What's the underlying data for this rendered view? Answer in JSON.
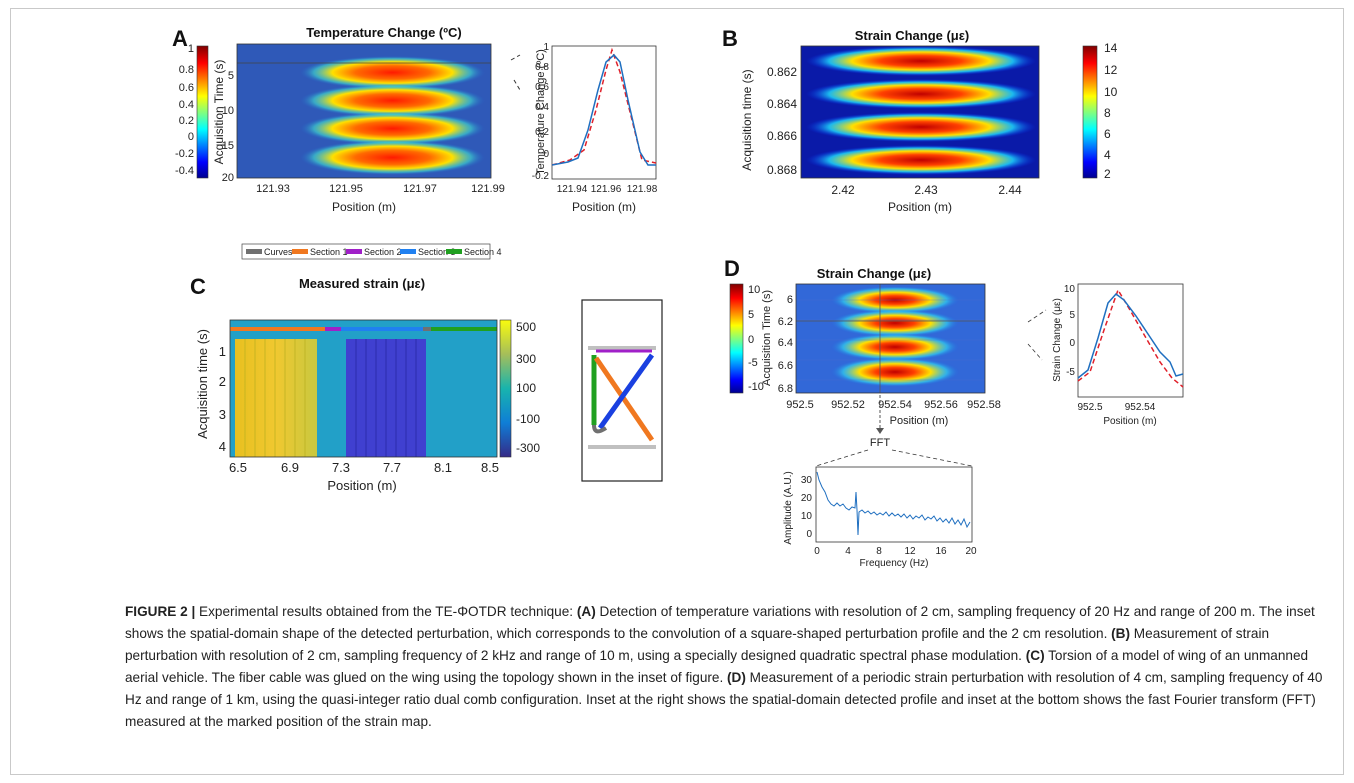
{
  "panels": {
    "A": {
      "letter": "A",
      "title": "Temperature Change (ºC)",
      "xlabel": "Position (m)",
      "ylabel": "Acquisition Time (s)",
      "xticks": [
        "121.93",
        "121.95",
        "121.97",
        "121.99"
      ],
      "yticks": [
        "5",
        "10",
        "15",
        "20"
      ],
      "cbar_ticks": [
        "1",
        "0.8",
        "0.6",
        "0.4",
        "0.2",
        "0",
        "-0.2",
        "-0.4"
      ],
      "inset": {
        "xlabel": "Position (m)",
        "ylabel": "Temperature Change (ºC)",
        "xticks": [
          "121.94",
          "121.96",
          "121.98"
        ],
        "yticks": [
          "1",
          "0.8",
          "0.6",
          "0.4",
          "0.2",
          "0",
          "-0.2"
        ]
      }
    },
    "B": {
      "letter": "B",
      "title": "Strain Change (με)",
      "xlabel": "Position (m)",
      "ylabel": "Acquisition time (s)",
      "xticks": [
        "2.42",
        "2.43",
        "2.44"
      ],
      "yticks": [
        "0.862",
        "0.864",
        "0.866",
        "0.868"
      ],
      "cbar_ticks": [
        "14",
        "12",
        "10",
        "8",
        "6",
        "4",
        "2"
      ]
    },
    "C": {
      "letter": "C",
      "title": "Measured strain (με)",
      "xlabel": "Position (m)",
      "ylabel": "Acquisition time (s)",
      "xticks": [
        "6.5",
        "6.9",
        "7.3",
        "7.7",
        "8.1",
        "8.5"
      ],
      "yticks": [
        "1",
        "2",
        "3",
        "4"
      ],
      "cbar_ticks": [
        "500",
        "300",
        "100",
        "-100",
        "-300"
      ],
      "legend": [
        "Curves",
        "Section 1",
        "Section 2",
        "Section 3",
        "Section 4"
      ]
    },
    "D": {
      "letter": "D",
      "title": "Strain Change (με)",
      "xlabel": "Position (m)",
      "ylabel": "Acquisition Time (s)",
      "xticks": [
        "952.5",
        "952.52",
        "952.54",
        "952.56",
        "952.58"
      ],
      "yticks": [
        "6",
        "6.2",
        "6.4",
        "6.6",
        "6.8"
      ],
      "cbar_ticks": [
        "10",
        "5",
        "0",
        "-5",
        "-10"
      ],
      "inset": {
        "xlabel": "Position (m)",
        "ylabel": "Strain Change (με)",
        "xticks": [
          "952.5",
          "952.54"
        ],
        "yticks": [
          "10",
          "5",
          "0",
          "-5"
        ]
      },
      "fft_label": "FFT",
      "fft": {
        "xlabel": "Frequency (Hz)",
        "ylabel": "Amplitude (A.U.)",
        "xticks": [
          "0",
          "4",
          "8",
          "12",
          "16",
          "20"
        ],
        "yticks": [
          "30",
          "20",
          "10",
          "0"
        ]
      }
    }
  },
  "colors": {
    "legend": [
      "#707070",
      "#f07820",
      "#a020c8",
      "#2080f0",
      "#20a020"
    ],
    "measured": "#1f6fc0",
    "model": "#e0202a"
  },
  "caption": {
    "figure_label": "FIGURE 2 |",
    "intro": " Experimental results obtained from the TE-ΦOTDR technique: ",
    "A_tag": "(A)",
    "A_text": " Detection of temperature variations with resolution of 2 cm, sampling frequency of 20 Hz and range of 200 m. The inset shows the spatial-domain shape of the detected perturbation, which corresponds to the convolution of a square-shaped perturbation profile and the 2 cm resolution. ",
    "B_tag": "(B)",
    "B_text": " Measurement of strain perturbation with resolution of 2 cm, sampling frequency of 2 kHz and range of 10 m, using a specially designed quadratic spectral phase modulation. ",
    "C_tag": "(C)",
    "C_text": " Torsion of a model of wing of an unmanned aerial vehicle. The fiber cable was glued on the wing using the topology shown in the inset of figure. ",
    "D_tag": "(D)",
    "D_text": " Measurement of a periodic strain perturbation with resolution of 4 cm, sampling frequency of 40 Hz and range of 1 km, using the quasi-integer ratio dual comb configuration. Inset at the right shows the spatial-domain detected profile and inset at the bottom shows the fast Fourier transform (FFT) measured at the marked position of the strain map."
  }
}
